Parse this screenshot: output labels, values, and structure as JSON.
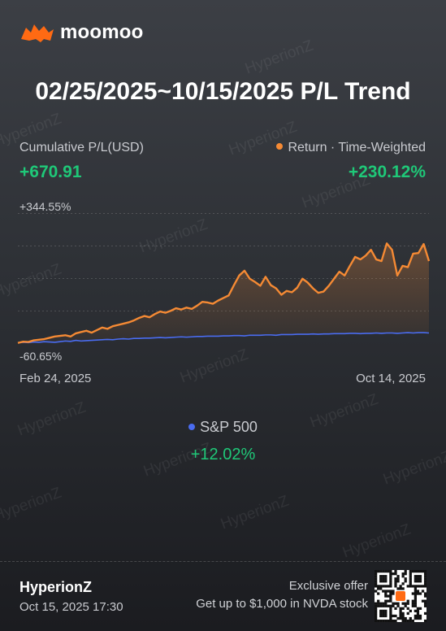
{
  "brand": {
    "name": "moomoo",
    "logo_icon": "moomoo-bull-logo",
    "accent": "#ff6a13"
  },
  "title": "02/25/2025~10/15/2025 P/L Trend",
  "cumulative": {
    "label": "Cumulative P/L(USD)",
    "value": "+670.91"
  },
  "return": {
    "label": "Return · Time-Weighted",
    "value": "+230.12%"
  },
  "colors": {
    "portfolio": "#f58a34",
    "benchmark": "#4a6cf0",
    "positive": "#1fc878"
  },
  "chart_data": {
    "type": "line",
    "ylim_label_top": "+344.55%",
    "ylim_label_bottom": "-60.65%",
    "ylim": [
      -60.65,
      344.55
    ],
    "x_start_label": "Feb 24, 2025",
    "x_end_label": "Oct 14, 2025",
    "grid": true,
    "series": [
      {
        "name": "Portfolio",
        "values": [
          -60,
          -56,
          -57,
          -52,
          -50,
          -48,
          -44,
          -40,
          -38,
          -36,
          -40,
          -30,
          -26,
          -22,
          -28,
          -20,
          -12,
          -16,
          -8,
          -4,
          0,
          4,
          10,
          18,
          24,
          20,
          30,
          38,
          34,
          40,
          48,
          44,
          50,
          46,
          56,
          68,
          66,
          62,
          72,
          80,
          88,
          120,
          150,
          165,
          140,
          130,
          118,
          146,
          120,
          110,
          90,
          102,
          98,
          112,
          140,
          128,
          110,
          96,
          100,
          118,
          140,
          162,
          150,
          180,
          208,
          200,
          212,
          230,
          200,
          195,
          250,
          230,
          150,
          180,
          176,
          218,
          220,
          248,
          195
        ]
      },
      {
        "name": "S&P 500",
        "values": [
          -59,
          -58,
          -59,
          -57,
          -58,
          -56,
          -57,
          -58,
          -56,
          -54,
          -55,
          -52,
          -54,
          -53,
          -52,
          -51,
          -50,
          -49,
          -50,
          -48,
          -47,
          -48,
          -46,
          -46,
          -45,
          -45,
          -44,
          -43,
          -44,
          -43,
          -42,
          -41,
          -42,
          -41,
          -40,
          -40,
          -39,
          -39,
          -39,
          -38,
          -38,
          -37,
          -37,
          -38,
          -36,
          -36,
          -36,
          -35,
          -35,
          -36,
          -34,
          -34,
          -34,
          -33,
          -33,
          -33,
          -32,
          -33,
          -32,
          -32,
          -31,
          -31,
          -31,
          -30,
          -30,
          -31,
          -30,
          -30,
          -29,
          -30,
          -29,
          -29,
          -30,
          -29,
          -28,
          -29,
          -28,
          -28,
          -29
        ]
      }
    ]
  },
  "legend": {
    "name": "S&P 500",
    "value": "+12.02%"
  },
  "footer": {
    "user": "HyperionZ",
    "date": "Oct 15, 2025 17:30",
    "offer_line1": "Exclusive offer",
    "offer_line2": "Get up to $1,000 in NVDA stock"
  },
  "watermark": "HyperionZ"
}
